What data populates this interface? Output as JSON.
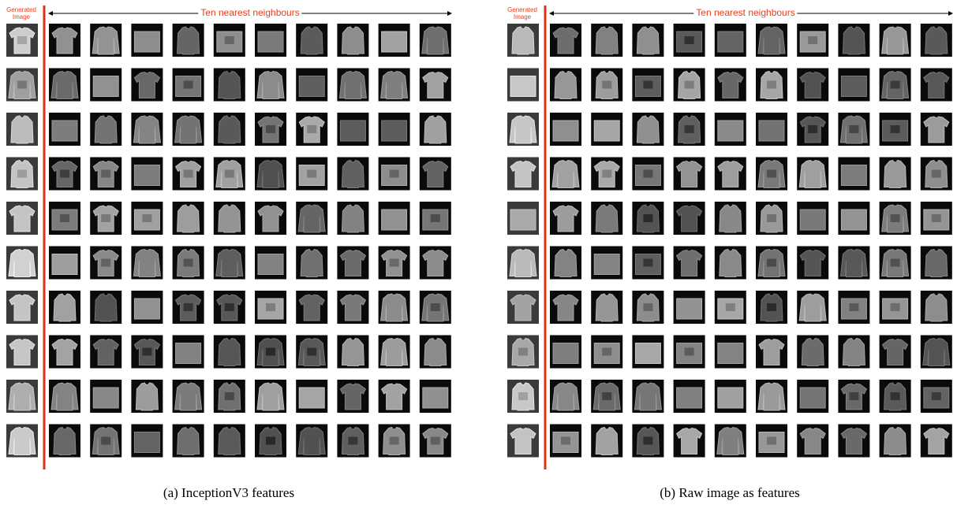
{
  "panels": [
    {
      "generated_label": "Generated Image",
      "neighbours_label": "Ten nearest neighbours",
      "caption": "(a) InceptionV3 features"
    },
    {
      "generated_label": "Generated Image",
      "neighbours_label": "Ten nearest neighbours",
      "caption": "(b) Raw image as features"
    }
  ]
}
